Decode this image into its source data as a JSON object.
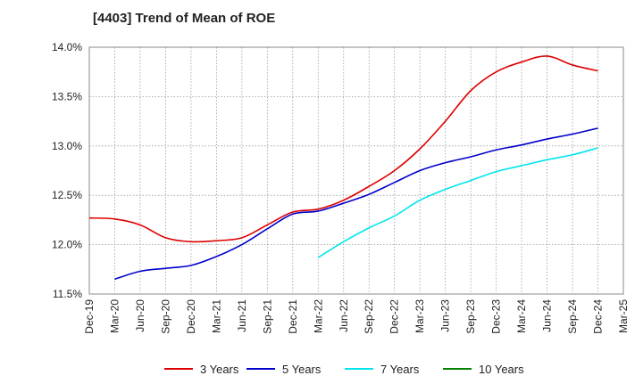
{
  "chart_data": {
    "type": "line",
    "title": "[4403]  Trend of Mean of ROE",
    "xlabel": "",
    "ylabel": "",
    "x_ticks": [
      "Dec-19",
      "Mar-20",
      "Jun-20",
      "Sep-20",
      "Dec-20",
      "Mar-21",
      "Jun-21",
      "Sep-21",
      "Dec-21",
      "Mar-22",
      "Jun-22",
      "Sep-22",
      "Dec-22",
      "Mar-23",
      "Jun-23",
      "Sep-23",
      "Dec-23",
      "Mar-24",
      "Jun-24",
      "Sep-24",
      "Dec-24",
      "Mar-25"
    ],
    "y_ticks": [
      "11.5%",
      "12.0%",
      "12.5%",
      "13.0%",
      "13.5%",
      "14.0%"
    ],
    "ylim": [
      11.5,
      14.0
    ],
    "grid": "dotted",
    "legend_position": "bottom",
    "series": [
      {
        "name": "3 Years",
        "color": "#dd0000",
        "x": [
          "Dec-19",
          "Mar-20",
          "Jun-20",
          "Sep-20",
          "Dec-20",
          "Mar-21",
          "Jun-21",
          "Sep-21",
          "Dec-21",
          "Mar-22",
          "Jun-22",
          "Sep-22",
          "Dec-22",
          "Mar-23",
          "Jun-23",
          "Sep-23",
          "Dec-23",
          "Mar-24",
          "Jun-24",
          "Sep-24",
          "Dec-24"
        ],
        "y": [
          12.27,
          12.26,
          12.2,
          12.07,
          12.03,
          12.04,
          12.07,
          12.2,
          12.33,
          12.36,
          12.45,
          12.59,
          12.75,
          12.97,
          13.25,
          13.56,
          13.75,
          13.85,
          13.91,
          13.82,
          13.76
        ]
      },
      {
        "name": "5 Years",
        "color": "#0000cc",
        "x": [
          "Mar-20",
          "Jun-20",
          "Sep-20",
          "Dec-20",
          "Mar-21",
          "Jun-21",
          "Sep-21",
          "Dec-21",
          "Mar-22",
          "Jun-22",
          "Sep-22",
          "Dec-22",
          "Mar-23",
          "Jun-23",
          "Sep-23",
          "Dec-23",
          "Mar-24",
          "Jun-24",
          "Sep-24",
          "Dec-24"
        ],
        "y": [
          11.65,
          11.73,
          11.76,
          11.79,
          11.88,
          12.0,
          12.16,
          12.31,
          12.34,
          12.42,
          12.51,
          12.63,
          12.75,
          12.83,
          12.89,
          12.96,
          13.01,
          13.07,
          13.12,
          13.18
        ]
      },
      {
        "name": "7 Years",
        "color": "#00e5ee",
        "x": [
          "Mar-22",
          "Jun-22",
          "Sep-22",
          "Dec-22",
          "Mar-23",
          "Jun-23",
          "Sep-23",
          "Dec-23",
          "Mar-24",
          "Jun-24",
          "Sep-24",
          "Dec-24"
        ],
        "y": [
          11.87,
          12.03,
          12.17,
          12.29,
          12.45,
          12.56,
          12.65,
          12.74,
          12.8,
          12.86,
          12.91,
          12.98
        ]
      },
      {
        "name": "10 Years",
        "color": "#008000",
        "x": [],
        "y": []
      }
    ]
  }
}
